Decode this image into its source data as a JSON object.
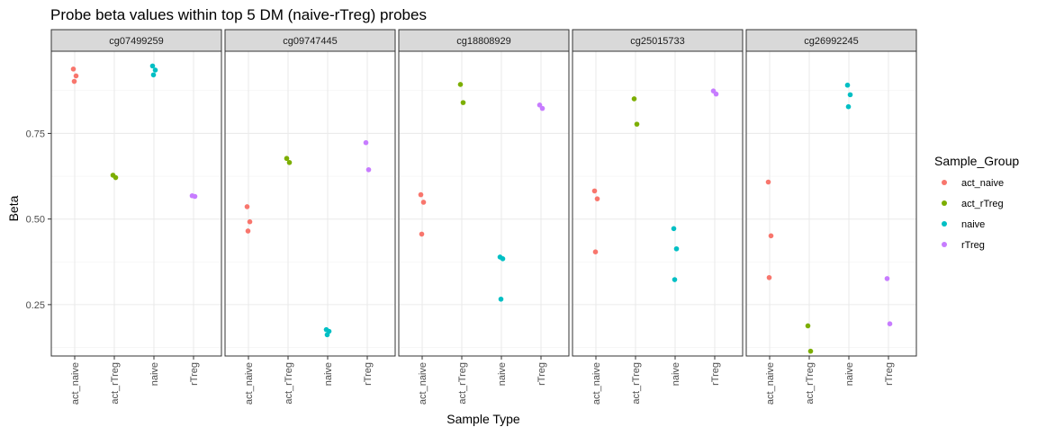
{
  "chart_data": {
    "type": "scatter",
    "title": "Probe beta values within top 5 DM (naive-rTreg) probes",
    "xlabel": "Sample Type",
    "ylabel": "Beta",
    "categories": [
      "act_naive",
      "act_rTreg",
      "naive",
      "rTreg"
    ],
    "ylim": [
      0.1,
      0.99
    ],
    "yticks": [
      0.25,
      0.5,
      0.75
    ],
    "ytick_labels": [
      "0.25",
      "0.50",
      "0.75"
    ],
    "grid": true,
    "legend": {
      "title": "Sample_Group",
      "placement": "right",
      "entries": [
        "act_naive",
        "act_rTreg",
        "naive",
        "rTreg"
      ]
    },
    "colors": {
      "act_naive": "#F8766D",
      "act_rTreg": "#7CAE00",
      "naive": "#00BFC4",
      "rTreg": "#C77CFF"
    },
    "panels": [
      {
        "probe": "cg07499259",
        "points": [
          {
            "group": "act_naive",
            "values": [
              0.938,
              0.918,
              0.902
            ]
          },
          {
            "group": "act_rTreg",
            "values": [
              0.628,
              0.621
            ]
          },
          {
            "group": "naive",
            "values": [
              0.947,
              0.935,
              0.921
            ]
          },
          {
            "group": "rTreg",
            "values": [
              0.568,
              0.566
            ]
          }
        ]
      },
      {
        "probe": "cg09747445",
        "points": [
          {
            "group": "act_naive",
            "values": [
              0.536,
              0.492,
              0.465
            ]
          },
          {
            "group": "act_rTreg",
            "values": [
              0.677,
              0.665
            ]
          },
          {
            "group": "naive",
            "values": [
              0.177,
              0.172,
              0.162
            ]
          },
          {
            "group": "rTreg",
            "values": [
              0.723,
              0.644
            ]
          }
        ]
      },
      {
        "probe": "cg18808929",
        "points": [
          {
            "group": "act_naive",
            "values": [
              0.571,
              0.549,
              0.456
            ]
          },
          {
            "group": "act_rTreg",
            "values": [
              0.893,
              0.84
            ]
          },
          {
            "group": "naive",
            "values": [
              0.389,
              0.384,
              0.266
            ]
          },
          {
            "group": "rTreg",
            "values": [
              0.833,
              0.823
            ]
          }
        ]
      },
      {
        "probe": "cg25015733",
        "points": [
          {
            "group": "act_naive",
            "values": [
              0.582,
              0.559,
              0.404
            ]
          },
          {
            "group": "act_rTreg",
            "values": [
              0.851,
              0.777
            ]
          },
          {
            "group": "naive",
            "values": [
              0.472,
              0.413,
              0.323
            ]
          },
          {
            "group": "rTreg",
            "values": [
              0.874,
              0.865
            ]
          }
        ]
      },
      {
        "probe": "cg26992245",
        "points": [
          {
            "group": "act_naive",
            "values": [
              0.608,
              0.451,
              0.329
            ]
          },
          {
            "group": "act_rTreg",
            "values": [
              0.188,
              0.114
            ]
          },
          {
            "group": "naive",
            "values": [
              0.891,
              0.863,
              0.828
            ]
          },
          {
            "group": "rTreg",
            "values": [
              0.326,
              0.194
            ]
          }
        ]
      }
    ]
  }
}
